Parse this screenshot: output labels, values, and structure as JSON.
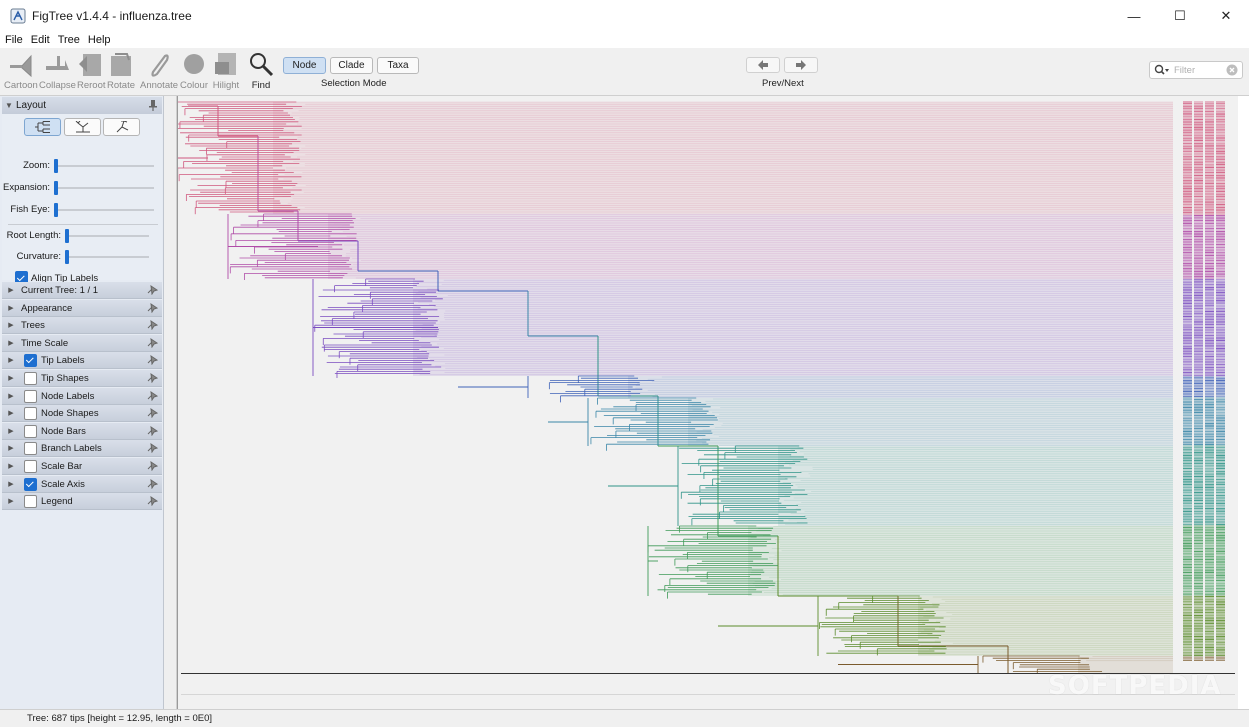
{
  "window": {
    "title": "FigTree v1.4.4 - influenza.tree",
    "minimize": "—",
    "maximize": "☐",
    "close": "✕"
  },
  "menu": [
    "File",
    "Edit",
    "Tree",
    "Help"
  ],
  "toolbar": {
    "tools": [
      {
        "label": "Cartoon",
        "icon": "cartoon-icon",
        "enabled": false
      },
      {
        "label": "Collapse",
        "icon": "collapse-icon",
        "enabled": false
      },
      {
        "label": "Reroot",
        "icon": "reroot-icon",
        "enabled": false
      },
      {
        "label": "Rotate",
        "icon": "rotate-icon",
        "enabled": false
      },
      {
        "label": "Annotate",
        "icon": "annotate-icon",
        "enabled": false
      },
      {
        "label": "Colour",
        "icon": "colour-icon",
        "enabled": false
      },
      {
        "label": "Hilight",
        "icon": "hilight-icon",
        "enabled": false
      },
      {
        "label": "Find",
        "icon": "find-icon",
        "enabled": true
      }
    ],
    "selection_modes": [
      "Node",
      "Clade",
      "Taxa"
    ],
    "selected_mode": "Node",
    "selection_mode_label": "Selection Mode",
    "prev_next_label": "Prev/Next",
    "filter_placeholder": "Filter"
  },
  "layout_panel": {
    "title": "Layout",
    "sliders": [
      {
        "label": "Zoom:",
        "value": 0.0
      },
      {
        "label": "Expansion:",
        "value": 0.0
      },
      {
        "label": "Fish Eye:",
        "value": 0.0
      },
      {
        "label": "Root Length:",
        "value": 0.05
      },
      {
        "label": "Curvature:",
        "value": 0.0
      }
    ],
    "align_tip_labels": {
      "label": "Align Tip Labels",
      "checked": true
    },
    "tree_layouts": [
      "rectangular",
      "polar",
      "radial"
    ],
    "selected_layout": "rectangular"
  },
  "sections": [
    {
      "label": "Current Tree: 1 / 1",
      "has_checkbox": false
    },
    {
      "label": "Appearance",
      "has_checkbox": false
    },
    {
      "label": "Trees",
      "has_checkbox": false
    },
    {
      "label": "Time Scale",
      "has_checkbox": false
    },
    {
      "label": "Tip Labels",
      "has_checkbox": true,
      "checked": true
    },
    {
      "label": "Tip Shapes",
      "has_checkbox": true,
      "checked": false
    },
    {
      "label": "Node Labels",
      "has_checkbox": true,
      "checked": false
    },
    {
      "label": "Node Shapes",
      "has_checkbox": true,
      "checked": false
    },
    {
      "label": "Node Bars",
      "has_checkbox": true,
      "checked": false
    },
    {
      "label": "Branch Labels",
      "has_checkbox": true,
      "checked": false
    },
    {
      "label": "Scale Bar",
      "has_checkbox": true,
      "checked": false
    },
    {
      "label": "Scale Axis",
      "has_checkbox": true,
      "checked": true
    },
    {
      "label": "Legend",
      "has_checkbox": true,
      "checked": false
    }
  ],
  "tree_colors": [
    "#d0587e",
    "#b04ca8",
    "#7a4cc0",
    "#3f62b8",
    "#3a86a8",
    "#2f9488",
    "#3f9a58",
    "#5b8c2c",
    "#7a5a2c",
    "#7a2e28"
  ],
  "watermark": "SOFTPEDIA",
  "status": "Tree: 687 tips [height = 12.95, length = 0E0]"
}
